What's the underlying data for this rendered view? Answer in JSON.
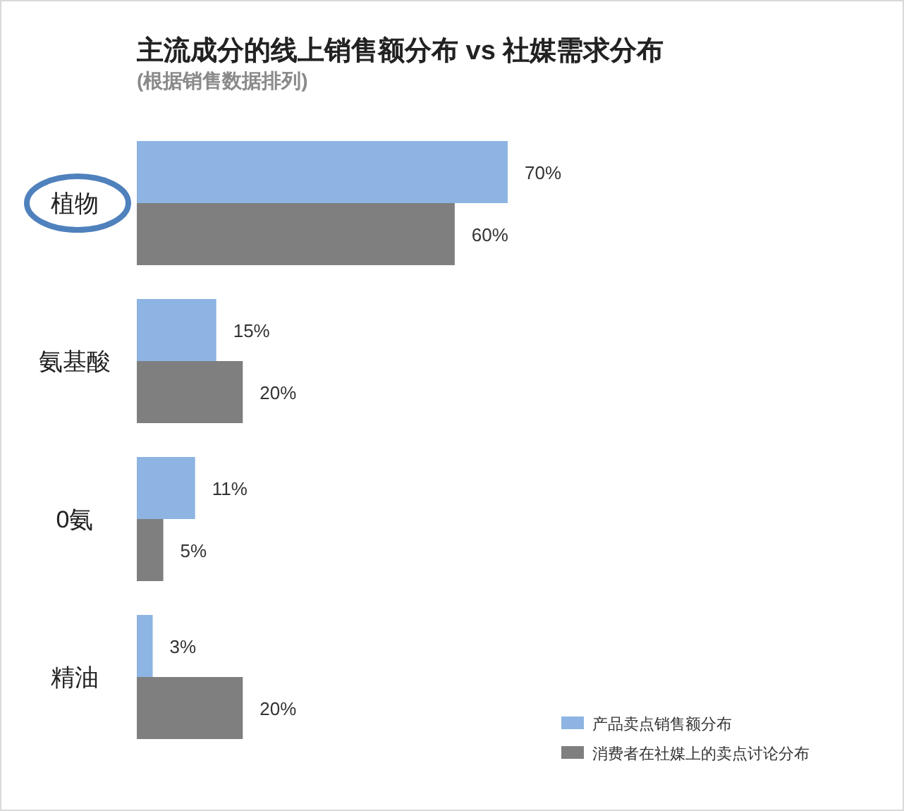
{
  "chart_data": {
    "type": "bar",
    "orientation": "horizontal",
    "title": "主流成分的线上销售额分布 vs 社媒需求分布",
    "subtitle": "(根据销售数据排列)",
    "categories": [
      "植物",
      "氨基酸",
      "0氨",
      "精油"
    ],
    "series": [
      {
        "name": "产品卖点销售额分布",
        "color": "#8db4e2",
        "values": [
          70,
          15,
          11,
          3
        ],
        "value_labels": [
          "70%",
          "15%",
          "11%",
          "3%"
        ]
      },
      {
        "name": "消费者在社媒上的卖点讨论分布",
        "color": "#7f7f7f",
        "values": [
          60,
          20,
          5,
          20
        ],
        "value_labels": [
          "60%",
          "20%",
          "5%",
          "20%"
        ]
      }
    ],
    "legend": "bottom right"
  }
}
